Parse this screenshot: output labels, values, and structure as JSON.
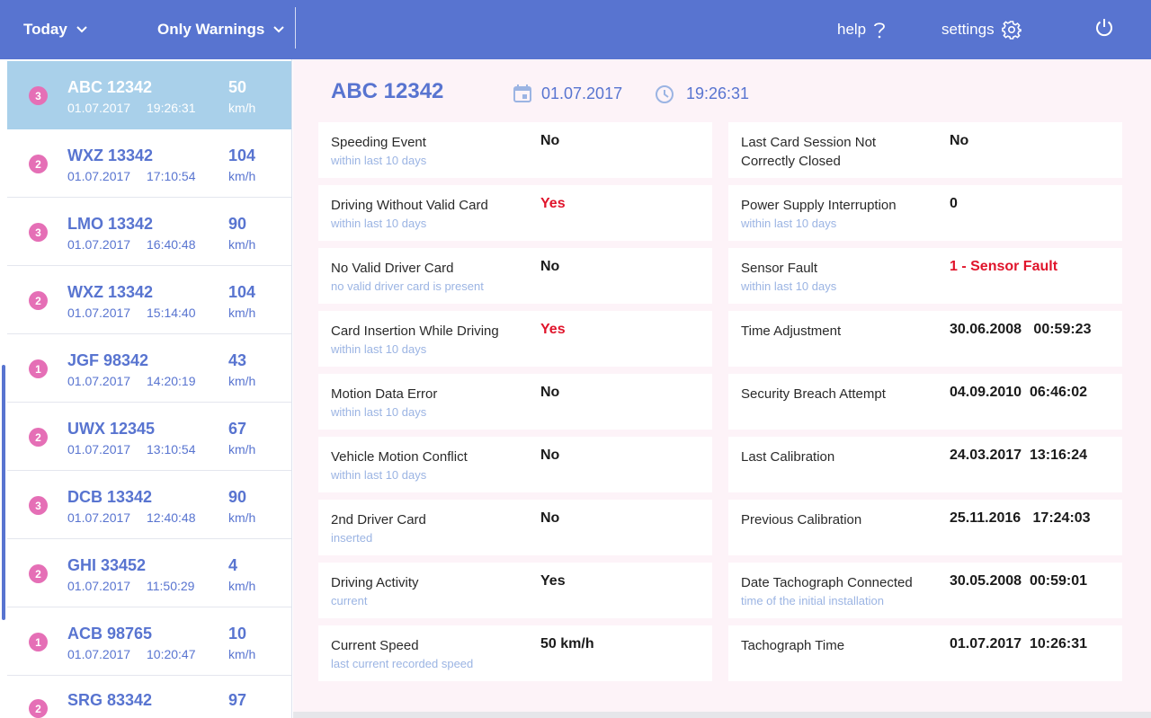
{
  "topbar": {
    "period": "Today",
    "filter": "Only Warnings",
    "help": "help",
    "settings": "settings",
    "icons": {
      "chevron": "chevron-down-icon",
      "help": "question-mark-icon",
      "settings": "gear-icon",
      "power": "power-icon"
    }
  },
  "vehicles": [
    {
      "badge": "3",
      "plate": "ABC 12342",
      "date": "01.07.2017",
      "time": "19:26:31",
      "speed": "50",
      "unit": "km/h"
    },
    {
      "badge": "2",
      "plate": "WXZ 13342",
      "date": "01.07.2017",
      "time": "17:10:54",
      "speed": "104",
      "unit": "km/h"
    },
    {
      "badge": "3",
      "plate": "LMO 13342",
      "date": "01.07.2017",
      "time": "16:40:48",
      "speed": "90",
      "unit": "km/h"
    },
    {
      "badge": "2",
      "plate": "WXZ 13342",
      "date": "01.07.2017",
      "time": "15:14:40",
      "speed": "104",
      "unit": "km/h"
    },
    {
      "badge": "1",
      "plate": "JGF 98342",
      "date": "01.07.2017",
      "time": "14:20:19",
      "speed": "43",
      "unit": "km/h"
    },
    {
      "badge": "2",
      "plate": "UWX 12345",
      "date": "01.07.2017",
      "time": "13:10:54",
      "speed": "67",
      "unit": "km/h"
    },
    {
      "badge": "3",
      "plate": "DCB 13342",
      "date": "01.07.2017",
      "time": "12:40:48",
      "speed": "90",
      "unit": "km/h"
    },
    {
      "badge": "2",
      "plate": "GHI 33452",
      "date": "01.07.2017",
      "time": "11:50:29",
      "speed": "4",
      "unit": "km/h"
    },
    {
      "badge": "1",
      "plate": "ACB 98765",
      "date": "01.07.2017",
      "time": "10:20:47",
      "speed": "10",
      "unit": "km/h"
    },
    {
      "badge": "2",
      "plate": "SRG 83342",
      "date": "",
      "time": "",
      "speed": "97",
      "unit": ""
    }
  ],
  "detail": {
    "title": "ABC 12342",
    "date": "01.07.2017",
    "time": "19:26:31",
    "icons": {
      "date": "calendar-icon",
      "time": "clock-icon"
    },
    "colors": {
      "accent": "#5874d0",
      "warning": "#e0142b",
      "badge": "#e56fb6",
      "selected": "#a9d0ea"
    },
    "left": [
      {
        "label": "Speeding Event",
        "sub": "within last 10 days",
        "value": "No",
        "warn": false
      },
      {
        "label": "Driving Without Valid Card",
        "sub": "within last 10 days",
        "value": "Yes",
        "warn": true
      },
      {
        "label": "No Valid Driver Card",
        "sub": "no valid driver card is present",
        "value": "No",
        "warn": false
      },
      {
        "label": "Card Insertion While Driving",
        "sub": "within last 10 days",
        "value": "Yes",
        "warn": true
      },
      {
        "label": "Motion Data Error",
        "sub": "within last 10 days",
        "value": "No",
        "warn": false
      },
      {
        "label": "Vehicle Motion Conflict",
        "sub": "within last 10 days",
        "value": "No",
        "warn": false
      },
      {
        "label": "2nd Driver Card",
        "sub": "inserted",
        "value": "No",
        "warn": false
      },
      {
        "label": "Driving Activity",
        "sub": "current",
        "value": "Yes",
        "warn": false
      },
      {
        "label": "Current Speed",
        "sub": "last current recorded speed",
        "value": "50 km/h",
        "warn": false
      }
    ],
    "right": [
      {
        "label": "Last Card Session Not Correctly Closed",
        "sub": "",
        "value": "No",
        "warn": false
      },
      {
        "label": "Power Supply Interruption",
        "sub": "within last 10 days",
        "value": "0",
        "warn": false
      },
      {
        "label": "Sensor Fault",
        "sub": "within last 10 days",
        "value": "1 - Sensor Fault",
        "warn": true
      },
      {
        "label": "Time Adjustment",
        "sub": "",
        "value": "30.06.2008   00:59:23",
        "warn": false
      },
      {
        "label": "Security Breach Attempt",
        "sub": "",
        "value": "04.09.2010  06:46:02",
        "warn": false
      },
      {
        "label": "Last Calibration",
        "sub": "",
        "value": "24.03.2017  13:16:24",
        "warn": false
      },
      {
        "label": "Previous Calibration",
        "sub": "",
        "value": "25.11.2016   17:24:03",
        "warn": false
      },
      {
        "label": "Date Tachograph Connected",
        "sub": "time of the initial installation",
        "value": "30.05.2008  00:59:01",
        "warn": false
      },
      {
        "label": "Tachograph Time",
        "sub": "",
        "value": "01.07.2017  10:26:31",
        "warn": false
      }
    ]
  }
}
